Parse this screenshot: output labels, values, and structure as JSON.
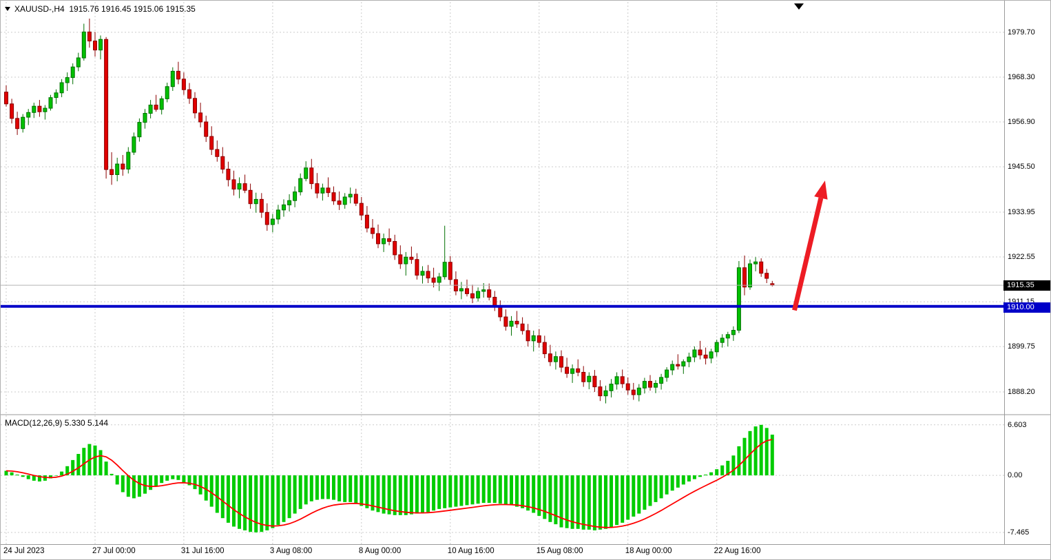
{
  "header": {
    "symbol_ohlc": "XAUUSD-,H4  1915.76 1916.45 1915.06 1915.35"
  },
  "macd_panel": {
    "label": "MACD(12,26,9) 5.330 5.144"
  },
  "chart_data": {
    "type": "candlestick",
    "symbol": "XAUUSD-",
    "timeframe": "H4",
    "last_candle": {
      "open": 1915.76,
      "high": 1916.45,
      "low": 1915.06,
      "close": 1915.35
    },
    "current_price": 1915.35,
    "price_view_range": [
      1882.6,
      1987.4
    ],
    "price_axis_ticks": [
      1979.7,
      1968.3,
      1956.9,
      1945.5,
      1933.95,
      1922.55,
      1911.15,
      1899.75,
      1888.2
    ],
    "time_axis_labels": [
      {
        "label": "24 Jul 2023",
        "index": 0
      },
      {
        "label": "27 Jul 00:00",
        "index": 16
      },
      {
        "label": "31 Jul 16:00",
        "index": 32
      },
      {
        "label": "3 Aug 08:00",
        "index": 48
      },
      {
        "label": "8 Aug 00:00",
        "index": 64
      },
      {
        "label": "10 Aug 16:00",
        "index": 80
      },
      {
        "label": "15 Aug 08:00",
        "index": 96
      },
      {
        "label": "18 Aug 00:00",
        "index": 112
      },
      {
        "label": "22 Aug 16:00",
        "index": 128
      }
    ],
    "support_line": {
      "price": 1910.0,
      "label": "1910.00",
      "color": "#0000C8"
    },
    "annotation": {
      "type": "arrow-up",
      "color": "#ED1C24",
      "from": {
        "bar": 142.0,
        "price": 1909.0
      },
      "to": {
        "bar": 147.5,
        "price": 1942.0
      }
    },
    "shift_marker_bar": 142.8,
    "colors": {
      "background": "#FFFFFF",
      "grid": "#CBCBCB",
      "up_fill": "#00C000",
      "up_border": "#007000",
      "down_fill": "#E00000",
      "down_border": "#8B0000",
      "current_price_line": "#B3B3B3",
      "badge_current_bg": "#000000"
    },
    "candles_ohlc": [
      [
        1964.5,
        1966.2,
        1960.8,
        1961.5
      ],
      [
        1961.5,
        1962.8,
        1956.5,
        1957.8
      ],
      [
        1957.8,
        1959.5,
        1953.6,
        1955.2
      ],
      [
        1955.2,
        1958.9,
        1954.2,
        1958.1
      ],
      [
        1958.1,
        1960.2,
        1956.1,
        1959.3
      ],
      [
        1959.3,
        1961.8,
        1957.9,
        1960.9
      ],
      [
        1960.9,
        1962.5,
        1958.2,
        1959.5
      ],
      [
        1959.5,
        1961.2,
        1957.5,
        1960.4
      ],
      [
        1960.4,
        1963.8,
        1959.8,
        1963.1
      ],
      [
        1963.1,
        1965.2,
        1961.5,
        1964.3
      ],
      [
        1964.3,
        1967.8,
        1963.2,
        1966.9
      ],
      [
        1966.9,
        1969.5,
        1964.8,
        1968.2
      ],
      [
        1968.2,
        1971.8,
        1966.5,
        1970.9
      ],
      [
        1970.9,
        1974.5,
        1969.8,
        1973.2
      ],
      [
        1973.2,
        1981.9,
        1972.5,
        1979.8
      ],
      [
        1979.8,
        1983.2,
        1975.8,
        1977.5
      ],
      [
        1977.5,
        1979.8,
        1973.5,
        1975.2
      ],
      [
        1975.2,
        1978.9,
        1972.8,
        1977.9
      ],
      [
        1977.9,
        1978.5,
        1942.5,
        1944.8
      ],
      [
        1944.8,
        1949.2,
        1940.9,
        1943.5
      ],
      [
        1943.5,
        1947.8,
        1941.8,
        1946.2
      ],
      [
        1946.2,
        1948.5,
        1943.2,
        1944.9
      ],
      [
        1944.9,
        1950.5,
        1943.8,
        1949.2
      ],
      [
        1949.2,
        1954.2,
        1948.5,
        1953.1
      ],
      [
        1953.1,
        1957.8,
        1951.9,
        1956.8
      ],
      [
        1956.8,
        1960.2,
        1955.2,
        1959.1
      ],
      [
        1959.1,
        1962.5,
        1957.8,
        1961.2
      ],
      [
        1961.2,
        1963.8,
        1959.5,
        1960.1
      ],
      [
        1960.1,
        1963.5,
        1958.8,
        1962.8
      ],
      [
        1962.8,
        1966.9,
        1961.9,
        1965.9
      ],
      [
        1965.9,
        1970.8,
        1964.8,
        1969.8
      ],
      [
        1969.8,
        1972.2,
        1966.5,
        1967.8
      ],
      [
        1967.8,
        1969.5,
        1963.8,
        1965.1
      ],
      [
        1965.1,
        1966.8,
        1961.5,
        1962.9
      ],
      [
        1962.9,
        1964.5,
        1957.8,
        1959.2
      ],
      [
        1959.2,
        1961.8,
        1955.5,
        1956.9
      ],
      [
        1956.9,
        1958.5,
        1951.8,
        1953.2
      ],
      [
        1953.2,
        1955.8,
        1948.5,
        1949.9
      ],
      [
        1949.9,
        1952.2,
        1946.8,
        1948.1
      ],
      [
        1948.1,
        1950.5,
        1943.8,
        1944.9
      ],
      [
        1944.9,
        1946.8,
        1940.5,
        1942.2
      ],
      [
        1942.2,
        1944.5,
        1938.2,
        1939.8
      ],
      [
        1939.8,
        1942.8,
        1937.5,
        1941.2
      ],
      [
        1941.2,
        1943.5,
        1938.8,
        1939.5
      ],
      [
        1939.5,
        1941.2,
        1934.8,
        1936.1
      ],
      [
        1936.1,
        1938.9,
        1933.8,
        1937.2
      ],
      [
        1937.2,
        1938.8,
        1932.5,
        1933.9
      ],
      [
        1933.9,
        1936.2,
        1929.2,
        1930.8
      ],
      [
        1930.8,
        1933.5,
        1928.8,
        1932.2
      ],
      [
        1932.2,
        1935.8,
        1930.9,
        1934.5
      ],
      [
        1934.5,
        1937.2,
        1932.8,
        1935.8
      ],
      [
        1935.8,
        1938.5,
        1934.1,
        1936.9
      ],
      [
        1936.9,
        1940.5,
        1935.2,
        1939.1
      ],
      [
        1939.1,
        1943.8,
        1938.2,
        1942.5
      ],
      [
        1942.5,
        1946.9,
        1941.8,
        1945.2
      ],
      [
        1945.2,
        1947.5,
        1939.8,
        1941.2
      ],
      [
        1941.2,
        1943.9,
        1937.5,
        1938.8
      ],
      [
        1938.8,
        1941.2,
        1936.9,
        1940.1
      ],
      [
        1940.1,
        1942.8,
        1937.8,
        1938.9
      ],
      [
        1938.9,
        1940.5,
        1935.8,
        1936.8
      ],
      [
        1936.8,
        1939.2,
        1934.5,
        1935.9
      ],
      [
        1935.9,
        1938.8,
        1934.8,
        1937.8
      ],
      [
        1937.8,
        1940.2,
        1936.2,
        1938.5
      ],
      [
        1938.5,
        1939.9,
        1935.5,
        1936.2
      ],
      [
        1936.2,
        1937.8,
        1931.9,
        1933.2
      ],
      [
        1933.2,
        1935.5,
        1928.8,
        1929.9
      ],
      [
        1929.9,
        1932.2,
        1927.2,
        1928.5
      ],
      [
        1928.5,
        1930.8,
        1924.8,
        1925.9
      ],
      [
        1925.9,
        1928.5,
        1923.8,
        1927.2
      ],
      [
        1927.2,
        1929.8,
        1925.5,
        1926.5
      ],
      [
        1926.5,
        1928.2,
        1921.8,
        1923.1
      ],
      [
        1923.1,
        1925.5,
        1919.5,
        1920.8
      ],
      [
        1920.8,
        1923.8,
        1917.8,
        1922.5
      ],
      [
        1922.5,
        1925.2,
        1920.8,
        1921.9
      ],
      [
        1921.9,
        1923.5,
        1916.8,
        1917.9
      ],
      [
        1917.9,
        1920.2,
        1915.8,
        1918.9
      ],
      [
        1918.9,
        1920.5,
        1915.9,
        1917.2
      ],
      [
        1917.2,
        1919.8,
        1914.8,
        1916.1
      ],
      [
        1916.1,
        1918.5,
        1913.9,
        1917.5
      ],
      [
        1917.5,
        1930.5,
        1916.8,
        1921.2
      ],
      [
        1921.2,
        1922.8,
        1915.5,
        1916.8
      ],
      [
        1916.8,
        1918.9,
        1912.8,
        1913.9
      ],
      [
        1913.9,
        1916.2,
        1911.8,
        1914.5
      ],
      [
        1914.5,
        1916.8,
        1912.5,
        1913.2
      ],
      [
        1913.2,
        1915.5,
        1910.8,
        1912.1
      ],
      [
        1912.1,
        1914.8,
        1911.2,
        1913.8
      ],
      [
        1913.8,
        1915.9,
        1912.2,
        1914.2
      ],
      [
        1914.2,
        1915.8,
        1911.5,
        1912.3
      ],
      [
        1912.3,
        1913.9,
        1908.8,
        1909.9
      ],
      [
        1909.9,
        1911.5,
        1906.2,
        1907.3
      ],
      [
        1907.3,
        1909.2,
        1903.8,
        1904.9
      ],
      [
        1904.9,
        1907.5,
        1902.5,
        1906.2
      ],
      [
        1906.2,
        1908.8,
        1904.5,
        1905.5
      ],
      [
        1905.5,
        1907.2,
        1902.8,
        1903.8
      ],
      [
        1903.8,
        1905.5,
        1899.8,
        1901.2
      ],
      [
        1901.2,
        1903.8,
        1898.5,
        1902.5
      ],
      [
        1902.5,
        1904.2,
        1899.5,
        1900.8
      ],
      [
        1900.8,
        1902.5,
        1896.8,
        1897.9
      ],
      [
        1897.9,
        1900.2,
        1894.8,
        1895.9
      ],
      [
        1895.9,
        1898.5,
        1893.9,
        1897.2
      ],
      [
        1897.2,
        1898.8,
        1893.2,
        1894.5
      ],
      [
        1894.5,
        1896.9,
        1891.8,
        1892.9
      ],
      [
        1892.9,
        1895.2,
        1890.5,
        1894.1
      ],
      [
        1894.1,
        1896.5,
        1892.2,
        1893.2
      ],
      [
        1893.2,
        1894.8,
        1889.5,
        1890.8
      ],
      [
        1890.8,
        1893.2,
        1888.9,
        1892.2
      ],
      [
        1892.2,
        1893.8,
        1888.2,
        1889.5
      ],
      [
        1889.5,
        1891.2,
        1885.9,
        1887.2
      ],
      [
        1887.2,
        1889.8,
        1885.3,
        1888.5
      ],
      [
        1888.5,
        1891.5,
        1886.8,
        1890.2
      ],
      [
        1890.2,
        1893.2,
        1888.8,
        1892.1
      ],
      [
        1892.1,
        1893.9,
        1889.2,
        1890.3
      ],
      [
        1890.3,
        1891.9,
        1887.5,
        1888.7
      ],
      [
        1888.7,
        1890.5,
        1886.2,
        1887.5
      ],
      [
        1887.5,
        1890.2,
        1885.8,
        1889.2
      ],
      [
        1889.2,
        1891.8,
        1887.8,
        1890.9
      ],
      [
        1890.9,
        1892.5,
        1888.5,
        1889.4
      ],
      [
        1889.4,
        1891.2,
        1887.9,
        1890.4
      ],
      [
        1890.4,
        1892.8,
        1888.8,
        1891.9
      ],
      [
        1891.9,
        1894.5,
        1890.8,
        1893.8
      ],
      [
        1893.8,
        1896.2,
        1892.5,
        1895.2
      ],
      [
        1895.2,
        1897.8,
        1893.9,
        1894.8
      ],
      [
        1894.8,
        1896.5,
        1892.8,
        1895.9
      ],
      [
        1895.9,
        1898.2,
        1894.5,
        1897.1
      ],
      [
        1897.1,
        1899.8,
        1895.8,
        1898.9
      ],
      [
        1898.9,
        1901.2,
        1896.5,
        1897.6
      ],
      [
        1897.6,
        1899.5,
        1895.2,
        1896.8
      ],
      [
        1896.8,
        1899.2,
        1895.5,
        1898.4
      ],
      [
        1898.4,
        1901.5,
        1897.2,
        1900.8
      ],
      [
        1900.8,
        1902.9,
        1899.5,
        1901.9
      ],
      [
        1901.9,
        1903.5,
        1899.8,
        1902.8
      ],
      [
        1902.8,
        1904.9,
        1901.2,
        1903.9
      ],
      [
        1903.9,
        1921.5,
        1903.2,
        1919.8
      ],
      [
        1919.8,
        1922.9,
        1912.8,
        1914.9
      ],
      [
        1914.9,
        1921.9,
        1914.2,
        1920.8
      ],
      [
        1920.8,
        1922.5,
        1918.9,
        1921.3
      ],
      [
        1921.3,
        1922.2,
        1917.5,
        1918.4
      ],
      [
        1918.4,
        1919.5,
        1915.9,
        1917.1
      ],
      [
        1915.76,
        1916.45,
        1915.06,
        1915.35
      ]
    ],
    "indicator": {
      "name": "MACD",
      "params": [
        12,
        26,
        9
      ],
      "macd_value": 5.33,
      "signal_value": 5.144,
      "axis_ticks": [
        {
          "label": "6.603",
          "value": 6.603
        },
        {
          "label": "0.00",
          "value": 0
        },
        {
          "label": "-7.465",
          "value": -7.465
        }
      ],
      "view_range": [
        -9.0,
        7.85
      ],
      "signal_ema_period": 9,
      "colors": {
        "histogram": "#00CC00",
        "signal": "#FF0000"
      },
      "histogram": [
        0.6,
        0.4,
        0.1,
        -0.2,
        -0.5,
        -0.7,
        -0.8,
        -0.7,
        -0.4,
        0.0,
        0.5,
        1.2,
        2.0,
        2.8,
        3.6,
        4.1,
        3.9,
        3.3,
        1.8,
        0.2,
        -1.2,
        -2.2,
        -2.8,
        -3.0,
        -2.8,
        -2.4,
        -1.9,
        -1.4,
        -1.0,
        -0.7,
        -0.5,
        -0.6,
        -0.9,
        -1.3,
        -1.8,
        -2.5,
        -3.3,
        -4.1,
        -4.9,
        -5.6,
        -6.2,
        -6.7,
        -7.0,
        -7.2,
        -7.4,
        -7.465,
        -7.4,
        -7.2,
        -6.9,
        -6.5,
        -6.1,
        -5.6,
        -5.0,
        -4.4,
        -3.8,
        -3.4,
        -3.2,
        -3.1,
        -3.1,
        -3.2,
        -3.4,
        -3.5,
        -3.5,
        -3.6,
        -4.0,
        -4.3,
        -4.6,
        -4.8,
        -5.0,
        -5.1,
        -5.2,
        -5.2,
        -5.2,
        -5.1,
        -5.0,
        -4.9,
        -4.8,
        -4.6,
        -4.4,
        -4.3,
        -4.2,
        -4.1,
        -4.0,
        -3.9,
        -3.8,
        -3.7,
        -3.6,
        -3.6,
        -3.6,
        -3.7,
        -3.8,
        -3.9,
        -4.1,
        -4.3,
        -4.6,
        -4.9,
        -5.3,
        -5.7,
        -6.1,
        -6.4,
        -6.8,
        -6.9,
        -7.0,
        -7.0,
        -7.1,
        -7.1,
        -7.2,
        -7.1,
        -7.0,
        -6.8,
        -6.5,
        -6.2,
        -5.8,
        -5.4,
        -5.0,
        -4.5,
        -4.0,
        -3.5,
        -3.0,
        -2.5,
        -2.0,
        -1.6,
        -1.2,
        -0.8,
        -0.5,
        -0.2,
        0.1,
        0.4,
        0.8,
        1.3,
        1.9,
        2.6,
        3.8,
        4.9,
        5.8,
        6.4,
        6.603,
        6.2,
        5.33
      ]
    }
  }
}
